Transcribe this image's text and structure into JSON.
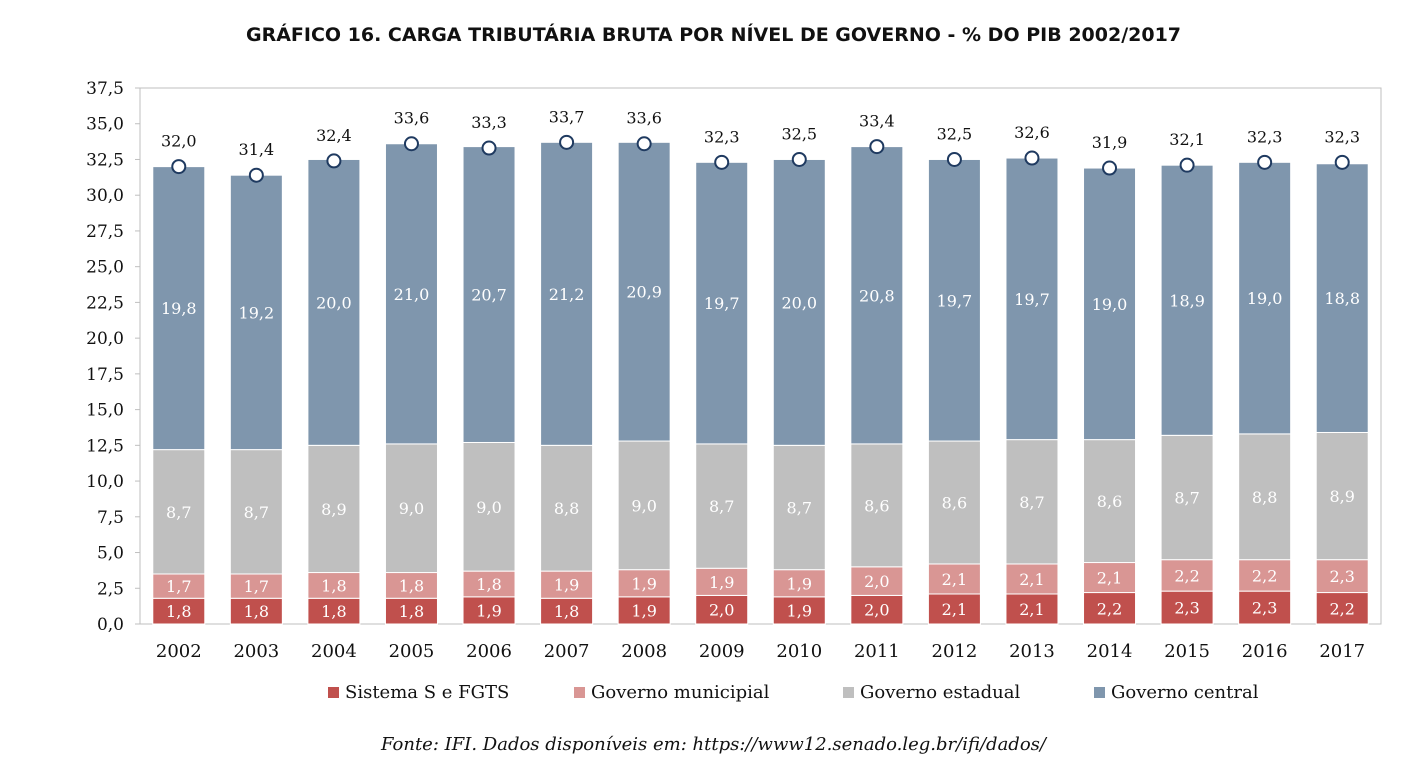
{
  "chart_data": {
    "type": "bar",
    "stacked": true,
    "title": "GRÁFICO 16. CARGA TRIBUTÁRIA BRUTA POR NÍVEL DE GOVERNO - % DO PIB 2002/2017",
    "categories": [
      "2002",
      "2003",
      "2004",
      "2005",
      "2006",
      "2007",
      "2008",
      "2009",
      "2010",
      "2011",
      "2012",
      "2013",
      "2014",
      "2015",
      "2016",
      "2017"
    ],
    "series": [
      {
        "name": "Sistema S e FGTS",
        "color": "#c0504d",
        "values": [
          1.8,
          1.8,
          1.8,
          1.8,
          1.9,
          1.8,
          1.9,
          2.0,
          1.9,
          2.0,
          2.1,
          2.1,
          2.2,
          2.3,
          2.3,
          2.2
        ],
        "labels": [
          "1,8",
          "1,8",
          "1,8",
          "1,8",
          "1,9",
          "1,8",
          "1,9",
          "2,0",
          "1,9",
          "2,0",
          "2,1",
          "2,1",
          "2,2",
          "2,3",
          "2,3",
          "2,2"
        ]
      },
      {
        "name": "Governo municipial",
        "color": "#d99694",
        "values": [
          1.7,
          1.7,
          1.8,
          1.8,
          1.8,
          1.9,
          1.9,
          1.9,
          1.9,
          2.0,
          2.1,
          2.1,
          2.1,
          2.2,
          2.2,
          2.3
        ],
        "labels": [
          "1,7",
          "1,7",
          "1,8",
          "1,8",
          "1,8",
          "1,9",
          "1,9",
          "1,9",
          "1,9",
          "2,0",
          "2,1",
          "2,1",
          "2,1",
          "2,2",
          "2,2",
          "2,3"
        ]
      },
      {
        "name": "Governo estadual",
        "color": "#bfbfbf",
        "values": [
          8.7,
          8.7,
          8.9,
          9.0,
          9.0,
          8.8,
          9.0,
          8.7,
          8.7,
          8.6,
          8.6,
          8.7,
          8.6,
          8.7,
          8.8,
          8.9
        ],
        "labels": [
          "8,7",
          "8,7",
          "8,9",
          "9,0",
          "9,0",
          "8,8",
          "9,0",
          "8,7",
          "8,7",
          "8,6",
          "8,6",
          "8,7",
          "8,6",
          "8,7",
          "8,8",
          "8,9"
        ]
      },
      {
        "name": "Governo central",
        "color": "#7f96ad",
        "values": [
          19.8,
          19.2,
          20.0,
          21.0,
          20.7,
          21.2,
          20.9,
          19.7,
          20.0,
          20.8,
          19.7,
          19.7,
          19.0,
          18.9,
          19.0,
          18.8
        ],
        "labels": [
          "19,8",
          "19,2",
          "20,0",
          "21,0",
          "20,7",
          "21,2",
          "20,9",
          "19,7",
          "20,0",
          "20,8",
          "19,7",
          "19,7",
          "19,0",
          "18,9",
          "19,0",
          "18,8"
        ]
      }
    ],
    "totals": [
      32.0,
      31.4,
      32.4,
      33.6,
      33.3,
      33.7,
      33.6,
      32.3,
      32.5,
      33.4,
      32.5,
      32.6,
      31.9,
      32.1,
      32.3,
      32.3
    ],
    "total_labels": [
      "32,0",
      "31,4",
      "32,4",
      "33,6",
      "33,3",
      "33,7",
      "33,6",
      "32,3",
      "32,5",
      "33,4",
      "32,5",
      "32,6",
      "31,9",
      "32,1",
      "32,3",
      "32,3"
    ],
    "ylim": [
      0,
      37.5
    ],
    "yticks": [
      0,
      2.5,
      5,
      7.5,
      10,
      12.5,
      15,
      17.5,
      20,
      22.5,
      25,
      27.5,
      30,
      32.5,
      35,
      37.5
    ],
    "ytick_labels": [
      "0,0",
      "2,5",
      "5,0",
      "7,5",
      "10,0",
      "12,5",
      "15,0",
      "17,5",
      "20,0",
      "22,5",
      "25,0",
      "27,5",
      "30,0",
      "32,5",
      "35,0",
      "37,5"
    ],
    "xlabel": "",
    "ylabel": "",
    "grid": false,
    "legend_position": "bottom",
    "total_marker": "white circle"
  },
  "source": {
    "prefix": "Fonte: IFI. Dados disponíveis em: ",
    "link_text": "https://www12.senado.leg.br/ifi/dados/"
  }
}
